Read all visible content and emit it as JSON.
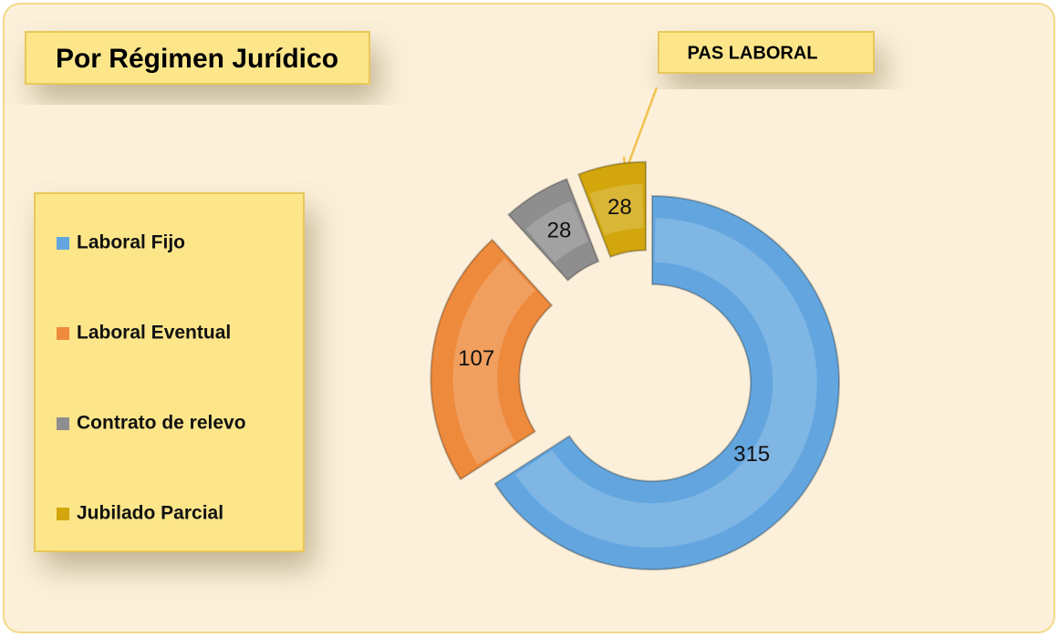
{
  "chart_data": {
    "type": "pie",
    "donut": true,
    "exploded": true,
    "title": "Por Régimen Jurídico",
    "annotation": "PAS LABORAL",
    "categories": [
      "Laboral Fijo",
      "Laboral Eventual",
      "Contrato de relevo",
      "Jubilado Parcial"
    ],
    "values": [
      315,
      107,
      28,
      28
    ],
    "colors": [
      "#63a6df",
      "#ee8a3c",
      "#8e8e8e",
      "#d2a60c"
    ]
  }
}
